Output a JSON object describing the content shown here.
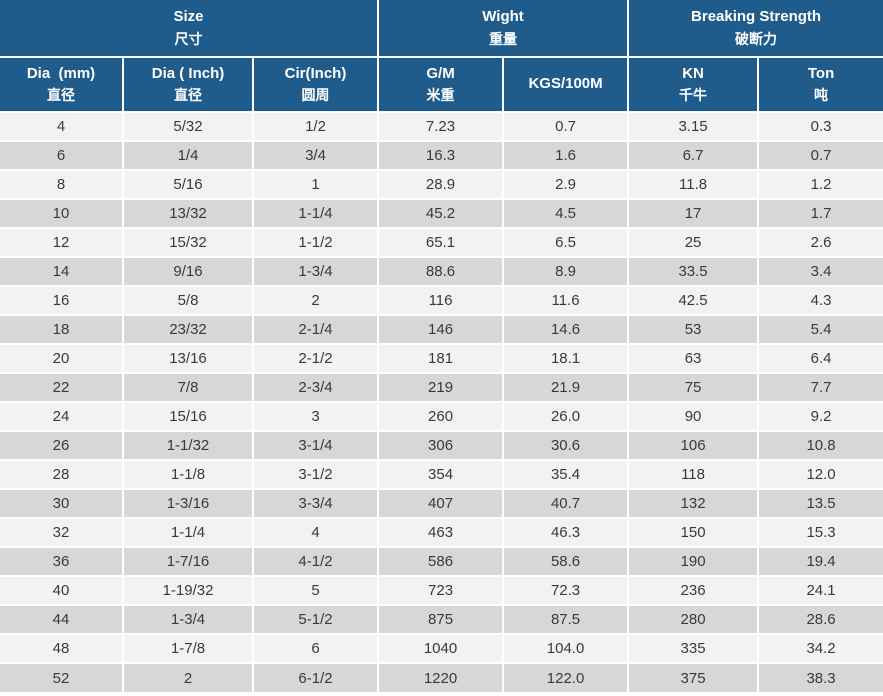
{
  "chart_data": {
    "type": "table",
    "column_groups": [
      {
        "en": "Size",
        "zh": "尺寸",
        "span": 3
      },
      {
        "en": "Wight",
        "zh": "重量",
        "span": 2
      },
      {
        "en": "Breaking Strength",
        "zh": "破断力",
        "span": 2
      }
    ],
    "columns": [
      {
        "en": "Dia  (mm)",
        "zh": "直径"
      },
      {
        "en": "Dia ( Inch)",
        "zh": "直径"
      },
      {
        "en": "Cir(Inch)",
        "zh": "圆周"
      },
      {
        "en": "G/M",
        "zh": "米重"
      },
      {
        "en": "KGS/100M",
        "zh": ""
      },
      {
        "en": "KN",
        "zh": "千牛"
      },
      {
        "en": "Ton",
        "zh": "吨"
      }
    ],
    "rows": [
      [
        "4",
        "5/32",
        "1/2",
        "7.23",
        "0.7",
        "3.15",
        "0.3"
      ],
      [
        "6",
        "1/4",
        "3/4",
        "16.3",
        "1.6",
        "6.7",
        "0.7"
      ],
      [
        "8",
        "5/16",
        "1",
        "28.9",
        "2.9",
        "11.8",
        "1.2"
      ],
      [
        "10",
        "13/32",
        "1-1/4",
        "45.2",
        "4.5",
        "17",
        "1.7"
      ],
      [
        "12",
        "15/32",
        "1-1/2",
        "65.1",
        "6.5",
        "25",
        "2.6"
      ],
      [
        "14",
        "9/16",
        "1-3/4",
        "88.6",
        "8.9",
        "33.5",
        "3.4"
      ],
      [
        "16",
        "5/8",
        "2",
        "116",
        "11.6",
        "42.5",
        "4.3"
      ],
      [
        "18",
        "23/32",
        "2-1/4",
        "146",
        "14.6",
        "53",
        "5.4"
      ],
      [
        "20",
        "13/16",
        "2-1/2",
        "181",
        "18.1",
        "63",
        "6.4"
      ],
      [
        "22",
        "7/8",
        "2-3/4",
        "219",
        "21.9",
        "75",
        "7.7"
      ],
      [
        "24",
        "15/16",
        "3",
        "260",
        "26.0",
        "90",
        "9.2"
      ],
      [
        "26",
        "1-1/32",
        "3-1/4",
        "306",
        "30.6",
        "106",
        "10.8"
      ],
      [
        "28",
        "1-1/8",
        "3-1/2",
        "354",
        "35.4",
        "118",
        "12.0"
      ],
      [
        "30",
        "1-3/16",
        "3-3/4",
        "407",
        "40.7",
        "132",
        "13.5"
      ],
      [
        "32",
        "1-1/4",
        "4",
        "463",
        "46.3",
        "150",
        "15.3"
      ],
      [
        "36",
        "1-7/16",
        "4-1/2",
        "586",
        "58.6",
        "190",
        "19.4"
      ],
      [
        "40",
        "1-19/32",
        "5",
        "723",
        "72.3",
        "236",
        "24.1"
      ],
      [
        "44",
        "1-3/4",
        "5-1/2",
        "875",
        "87.5",
        "280",
        "28.6"
      ],
      [
        "48",
        "1-7/8",
        "6",
        "1040",
        "104.0",
        "335",
        "34.2"
      ],
      [
        "52",
        "2",
        "6-1/2",
        "1220",
        "122.0",
        "375",
        "38.3"
      ]
    ]
  },
  "colors": {
    "header_bg": "#1f5c8c",
    "row_light": "#f2f2f2",
    "row_dark": "#d7d7d7",
    "cell_text": "#3a3a3a",
    "header_text": "#ffffff",
    "grid_line": "#ffffff"
  }
}
